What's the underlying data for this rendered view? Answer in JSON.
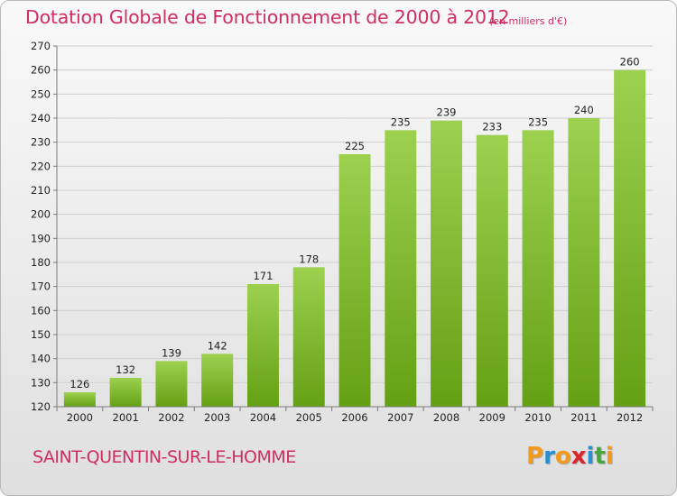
{
  "chart_data": {
    "type": "bar",
    "title": "Dotation Globale de Fonctionnement de 2000 à 2012",
    "subtitle": "(en milliers d'€)",
    "categories": [
      "2000",
      "2001",
      "2002",
      "2003",
      "2004",
      "2005",
      "2006",
      "2007",
      "2008",
      "2009",
      "2010",
      "2011",
      "2012"
    ],
    "values": [
      126,
      132,
      139,
      142,
      171,
      178,
      225,
      235,
      239,
      233,
      235,
      240,
      260
    ],
    "ylim": [
      120,
      270
    ],
    "ytick_step": 10,
    "xlabel": "",
    "ylabel": "",
    "grid": true,
    "bar_color_top": "#9cd14f",
    "bar_color_bottom": "#64a014"
  },
  "footer": {
    "city": "SAINT-QUENTIN-SUR-LE-HOMME"
  },
  "logo": {
    "letters": [
      "P",
      "r",
      "o",
      "x",
      "i",
      "t",
      "i"
    ],
    "colors": [
      "#f39a1e",
      "#2a8fd0",
      "#f39a1e",
      "#d9262b",
      "#2a8fd0",
      "#43a73a",
      "#f39a1e"
    ]
  },
  "colors": {
    "title": "#d02d60",
    "grid": "#cfcfcf",
    "axis": "#7a7a7a"
  }
}
